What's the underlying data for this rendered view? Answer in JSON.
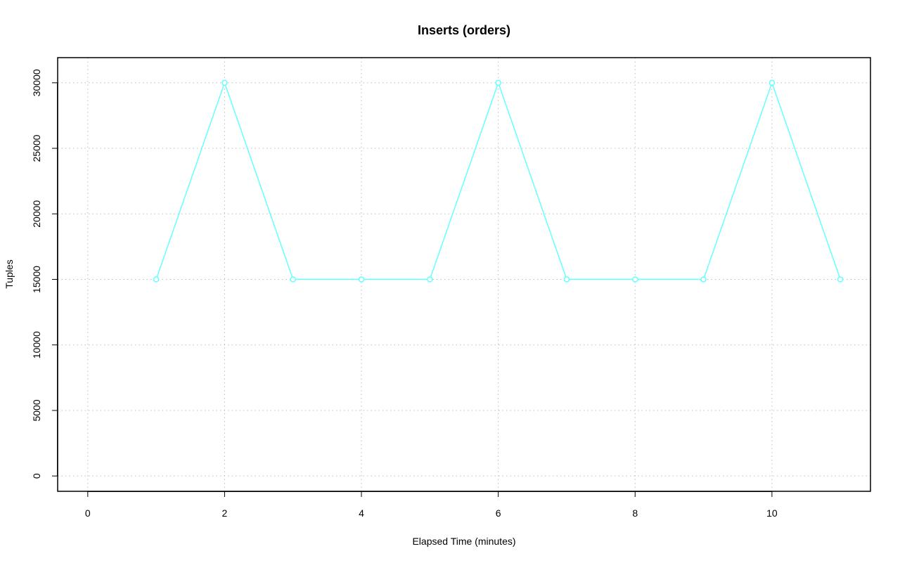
{
  "chart_data": {
    "type": "line",
    "title": "Inserts (orders)",
    "xlabel": "Elapsed Time (minutes)",
    "ylabel": "Tuples",
    "xlim": [
      -0.44,
      11.44
    ],
    "ylim": [
      -1170,
      31920
    ],
    "x_ticks": [
      0,
      2,
      4,
      6,
      8,
      10
    ],
    "y_ticks": [
      0,
      5000,
      10000,
      15000,
      20000,
      25000,
      30000
    ],
    "grid": true,
    "line_color": "#66ffff",
    "grid_color": "#bebebe",
    "series": [
      {
        "x": [
          1,
          2,
          3,
          4,
          5,
          6,
          7,
          8,
          9,
          10,
          11
        ],
        "values": [
          15000,
          30000,
          15000,
          15000,
          15000,
          30000,
          15000,
          15000,
          15000,
          30000,
          15000
        ]
      }
    ]
  }
}
